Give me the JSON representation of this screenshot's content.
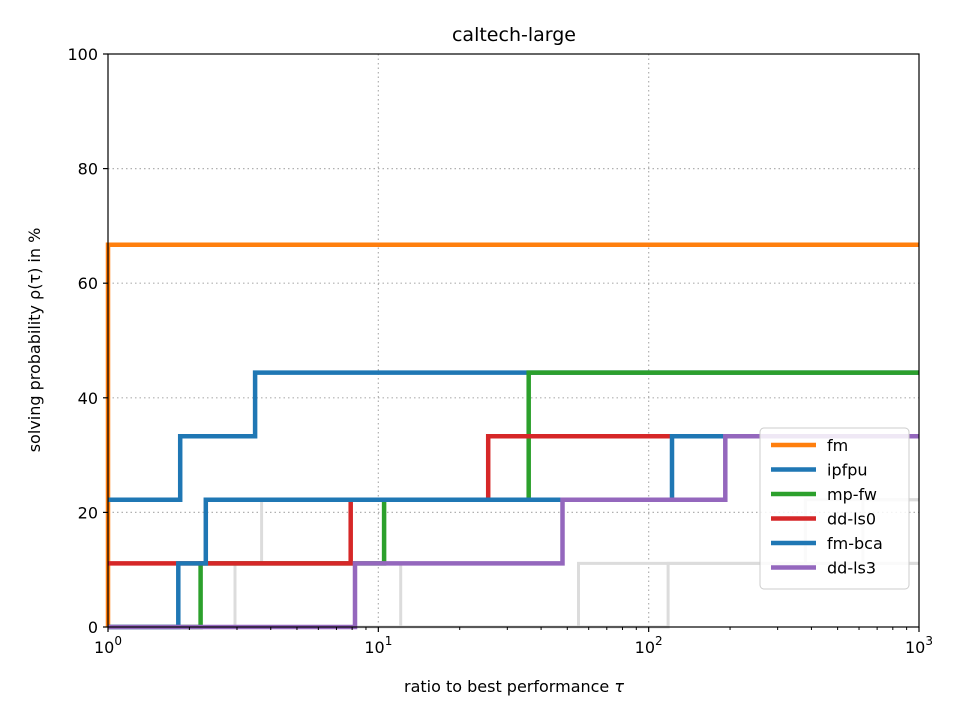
{
  "chart_data": {
    "type": "line",
    "step": "post",
    "title": "caltech-large",
    "xlabel": "ratio to best performance",
    "xlabel_symbol": "τ",
    "ylabel": "solving probability",
    "ylabel_symbol": "ρ(τ) in %",
    "xscale": "log",
    "xlim": [
      1,
      1000
    ],
    "ylim": [
      0,
      100
    ],
    "x_ticks": [
      1,
      10,
      100,
      1000
    ],
    "x_tick_labels": [
      {
        "base": "10",
        "exp": "0"
      },
      {
        "base": "10",
        "exp": "1"
      },
      {
        "base": "10",
        "exp": "2"
      },
      {
        "base": "10",
        "exp": "3"
      }
    ],
    "y_ticks": [
      0,
      20,
      40,
      60,
      80,
      100
    ],
    "y_tick_labels": [
      "0",
      "20",
      "40",
      "60",
      "80",
      "100"
    ],
    "grid": true,
    "legend_position": "lower right",
    "background_series": [
      {
        "color": "#dcdcdc",
        "x": [
          1,
          2.95,
          2.95
        ],
        "y": [
          0,
          0,
          11.1
        ]
      },
      {
        "color": "#dcdcdc",
        "x": [
          2.95,
          3.7,
          3.7
        ],
        "y": [
          11.1,
          11.1,
          22.2
        ]
      },
      {
        "color": "#dcdcdc",
        "x": [
          1,
          12.1,
          12.1
        ],
        "y": [
          0,
          0,
          11.1
        ]
      },
      {
        "color": "#dcdcdc",
        "x": [
          1,
          55,
          55,
          1000
        ],
        "y": [
          0,
          0,
          11.1,
          11.1
        ]
      },
      {
        "color": "#dcdcdc",
        "x": [
          1,
          118,
          118,
          1000
        ],
        "y": [
          0,
          0,
          11.1,
          11.1
        ]
      },
      {
        "color": "#dcdcdc",
        "x": [
          380,
          380,
          1000
        ],
        "y": [
          11.1,
          22.2,
          22.2
        ]
      },
      {
        "color": "#dcdcdc",
        "x": [
          620,
          620,
          1000
        ],
        "y": [
          11.1,
          22.2,
          22.2
        ]
      }
    ],
    "series": [
      {
        "name": "fm",
        "color": "#ff7f0e",
        "x": [
          1,
          1,
          1000
        ],
        "y": [
          0,
          66.7,
          66.7
        ]
      },
      {
        "name": "ipfpu",
        "color": "#1f77b4",
        "x": [
          1,
          1.85,
          1.85,
          3.5,
          3.5,
          1000
        ],
        "y": [
          22.2,
          22.2,
          33.3,
          33.3,
          44.4,
          44.4
        ]
      },
      {
        "name": "mp-fw",
        "color": "#2ca02c",
        "x": [
          1,
          2.2,
          2.2,
          10.5,
          10.5,
          36,
          36,
          1000
        ],
        "y": [
          0,
          0,
          11.1,
          11.1,
          22.2,
          22.2,
          44.4,
          44.4
        ]
      },
      {
        "name": "dd-ls0",
        "color": "#d62728",
        "x": [
          1,
          7.9,
          7.9,
          25.5,
          25.5,
          1000
        ],
        "y": [
          11.1,
          11.1,
          22.2,
          22.2,
          33.3,
          33.3
        ]
      },
      {
        "name": "fm-bca",
        "color": "#1f77b4",
        "x": [
          1,
          1.82,
          1.82,
          2.3,
          2.3,
          122,
          122,
          1000
        ],
        "y": [
          0,
          0,
          11.1,
          11.1,
          22.2,
          22.2,
          33.3,
          33.3
        ]
      },
      {
        "name": "dd-ls3",
        "color": "#9467bd",
        "x": [
          1,
          8.2,
          8.2,
          48,
          48,
          192,
          192,
          1000
        ],
        "y": [
          0,
          0,
          11.1,
          11.1,
          22.2,
          22.2,
          33.3,
          33.3
        ]
      }
    ]
  }
}
